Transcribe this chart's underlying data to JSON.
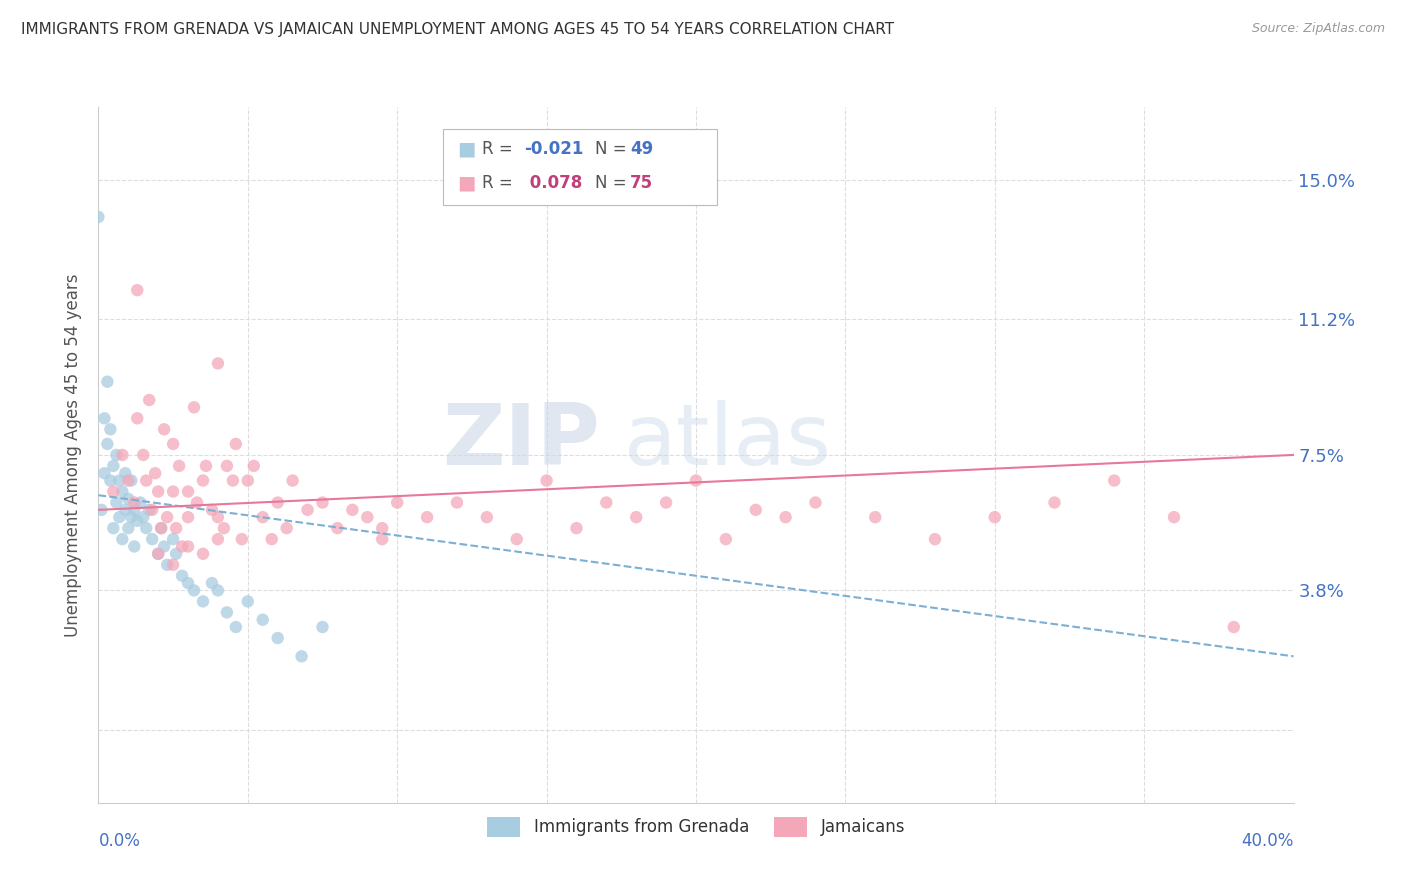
{
  "title": "IMMIGRANTS FROM GRENADA VS JAMAICAN UNEMPLOYMENT AMONG AGES 45 TO 54 YEARS CORRELATION CHART",
  "source": "Source: ZipAtlas.com",
  "ylabel": "Unemployment Among Ages 45 to 54 years",
  "yticks": [
    0.0,
    0.038,
    0.075,
    0.112,
    0.15
  ],
  "ytick_labels": [
    "",
    "3.8%",
    "7.5%",
    "11.2%",
    "15.0%"
  ],
  "xlim": [
    0.0,
    0.4
  ],
  "ylim": [
    -0.02,
    0.17
  ],
  "color_blue": "#a8cce0",
  "color_pink": "#f4a7b9",
  "color_blue_line": "#7bafd4",
  "color_pink_line": "#e8789a",
  "color_blue_text": "#4472c4",
  "color_pink_text": "#c0407a",
  "watermark_zip": "ZIP",
  "watermark_atlas": "atlas",
  "legend_label1": "Immigrants from Grenada",
  "legend_label2": "Jamaicans",
  "blue_x": [
    0.001,
    0.002,
    0.002,
    0.003,
    0.003,
    0.004,
    0.004,
    0.005,
    0.005,
    0.006,
    0.006,
    0.007,
    0.007,
    0.008,
    0.008,
    0.009,
    0.009,
    0.01,
    0.01,
    0.011,
    0.011,
    0.012,
    0.012,
    0.013,
    0.014,
    0.015,
    0.016,
    0.017,
    0.018,
    0.02,
    0.021,
    0.022,
    0.023,
    0.025,
    0.026,
    0.028,
    0.03,
    0.032,
    0.035,
    0.038,
    0.04,
    0.043,
    0.046,
    0.05,
    0.055,
    0.06,
    0.068,
    0.075,
    0.0
  ],
  "blue_y": [
    0.06,
    0.085,
    0.07,
    0.095,
    0.078,
    0.068,
    0.082,
    0.072,
    0.055,
    0.075,
    0.062,
    0.068,
    0.058,
    0.065,
    0.052,
    0.07,
    0.06,
    0.063,
    0.055,
    0.068,
    0.058,
    0.06,
    0.05,
    0.057,
    0.062,
    0.058,
    0.055,
    0.06,
    0.052,
    0.048,
    0.055,
    0.05,
    0.045,
    0.052,
    0.048,
    0.042,
    0.04,
    0.038,
    0.035,
    0.04,
    0.038,
    0.032,
    0.028,
    0.035,
    0.03,
    0.025,
    0.02,
    0.028,
    0.14
  ],
  "pink_x": [
    0.005,
    0.008,
    0.01,
    0.012,
    0.013,
    0.015,
    0.016,
    0.017,
    0.018,
    0.019,
    0.02,
    0.021,
    0.022,
    0.023,
    0.025,
    0.025,
    0.026,
    0.027,
    0.028,
    0.03,
    0.03,
    0.032,
    0.033,
    0.035,
    0.036,
    0.038,
    0.04,
    0.04,
    0.042,
    0.043,
    0.045,
    0.046,
    0.048,
    0.05,
    0.052,
    0.055,
    0.058,
    0.06,
    0.063,
    0.065,
    0.07,
    0.075,
    0.08,
    0.085,
    0.09,
    0.095,
    0.1,
    0.11,
    0.12,
    0.13,
    0.14,
    0.15,
    0.16,
    0.17,
    0.18,
    0.19,
    0.2,
    0.21,
    0.22,
    0.23,
    0.24,
    0.26,
    0.28,
    0.3,
    0.32,
    0.34,
    0.36,
    0.38,
    0.013,
    0.02,
    0.025,
    0.03,
    0.035,
    0.04,
    0.095
  ],
  "pink_y": [
    0.065,
    0.075,
    0.068,
    0.062,
    0.12,
    0.075,
    0.068,
    0.09,
    0.06,
    0.07,
    0.065,
    0.055,
    0.082,
    0.058,
    0.065,
    0.078,
    0.055,
    0.072,
    0.05,
    0.065,
    0.058,
    0.088,
    0.062,
    0.068,
    0.072,
    0.06,
    0.1,
    0.058,
    0.055,
    0.072,
    0.068,
    0.078,
    0.052,
    0.068,
    0.072,
    0.058,
    0.052,
    0.062,
    0.055,
    0.068,
    0.06,
    0.062,
    0.055,
    0.06,
    0.058,
    0.052,
    0.062,
    0.058,
    0.062,
    0.058,
    0.052,
    0.068,
    0.055,
    0.062,
    0.058,
    0.062,
    0.068,
    0.052,
    0.06,
    0.058,
    0.062,
    0.058,
    0.052,
    0.058,
    0.062,
    0.068,
    0.058,
    0.028,
    0.085,
    0.048,
    0.045,
    0.05,
    0.048,
    0.052,
    0.055
  ],
  "blue_trend_x": [
    0.0,
    0.4
  ],
  "blue_trend_y": [
    0.064,
    0.02
  ],
  "pink_trend_x": [
    0.0,
    0.4
  ],
  "pink_trend_y": [
    0.06,
    0.075
  ]
}
